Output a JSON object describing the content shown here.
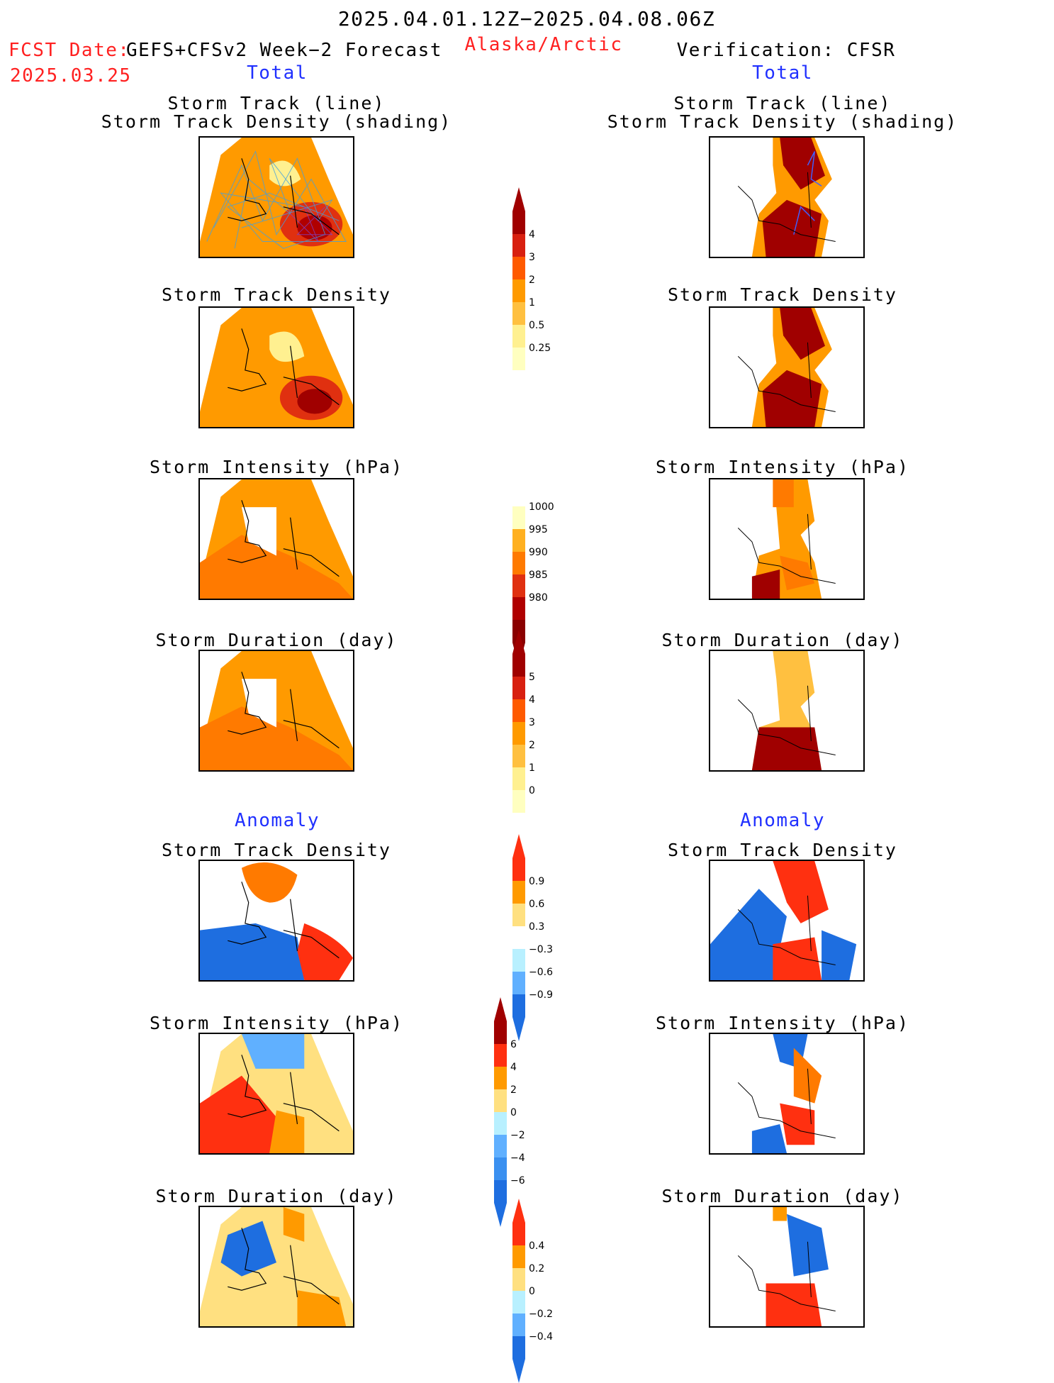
{
  "header": {
    "date_range": "2025.04.01.12Z−2025.04.08.06Z",
    "fcst_label": "FCST Date:",
    "fcst_model": "GEFS+CFSv2 Week−2 Forecast",
    "fcst_date": "2025.03.25",
    "region": "Alaska/Arctic",
    "verification": "Verification: CFSR"
  },
  "sections": {
    "total_left": "Total",
    "total_right": "Total",
    "anomaly_left": "Anomaly",
    "anomaly_right": "Anomaly"
  },
  "panels": {
    "track_line": "Storm Track (line)",
    "track_shading": "Storm Track Density (shading)",
    "density": "Storm Track Density",
    "intensity": "Storm Intensity (hPa)",
    "duration": "Storm Duration (day)"
  },
  "colorbars": {
    "density": {
      "labels": [
        "4",
        "3",
        "2",
        "1",
        "0.5",
        "0.25"
      ],
      "colors": [
        "#a00000",
        "#d82010",
        "#ff5a00",
        "#ff9a00",
        "#ffc040",
        "#fff090",
        "#ffffc0",
        "#ffffff"
      ],
      "extend": "max"
    },
    "intensity": {
      "labels": [
        "1000",
        "995",
        "990",
        "985",
        "980"
      ],
      "colors": [
        "#ffffff",
        "#ffffc0",
        "#ffb020",
        "#ff7a00",
        "#e03010",
        "#b00000",
        "#8a0000"
      ],
      "extend": "min"
    },
    "duration": {
      "labels": [
        "5",
        "4",
        "3",
        "2",
        "1",
        "0"
      ],
      "colors": [
        "#a00000",
        "#d82010",
        "#ff5a00",
        "#ff9a00",
        "#ffc040",
        "#fff090",
        "#ffffc0",
        "#ffffff"
      ],
      "extend": "max"
    },
    "anom_density": {
      "labels": [
        "0.9",
        "0.6",
        "0.3",
        "−0.3",
        "−0.6",
        "−0.9"
      ],
      "colors": [
        "#ff3010",
        "#ff9a00",
        "#ffe080",
        "#ffffff",
        "#b8f0ff",
        "#60b0ff",
        "#1e6ee0"
      ],
      "extend": "both"
    },
    "anom_intensity": {
      "labels": [
        "6",
        "4",
        "2",
        "0",
        "−2",
        "−4",
        "−6"
      ],
      "colors": [
        "#a00000",
        "#ff3010",
        "#ff9a00",
        "#ffe080",
        "#b8f0ff",
        "#60b0ff",
        "#3a90f0",
        "#1e6ee0"
      ],
      "extend": "both"
    },
    "anom_duration": {
      "labels": [
        "0.4",
        "0.2",
        "0",
        "−0.2",
        "−0.4"
      ],
      "colors": [
        "#ff3010",
        "#ff9a00",
        "#ffe080",
        "#b8f0ff",
        "#60b0ff",
        "#1e6ee0"
      ],
      "extend": "both"
    }
  }
}
